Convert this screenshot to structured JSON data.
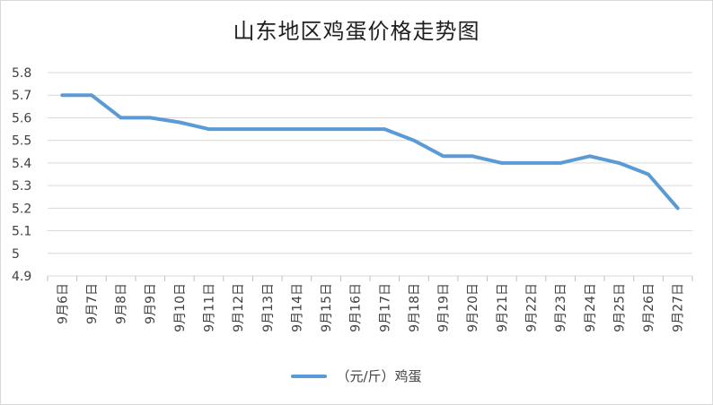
{
  "chart_data": {
    "type": "line",
    "title": "山东地区鸡蛋价格走势图",
    "categories": [
      "9月6日",
      "9月7日",
      "9月8日",
      "9月9日",
      "9月10日",
      "9月11日",
      "9月12日",
      "9月13日",
      "9月14日",
      "9月15日",
      "9月16日",
      "9月17日",
      "9月18日",
      "9月19日",
      "9月20日",
      "9月21日",
      "9月22日",
      "9月23日",
      "9月24日",
      "9月25日",
      "9月26日",
      "9月27日"
    ],
    "series": [
      {
        "name": "（元/斤）鸡蛋",
        "values": [
          5.7,
          5.7,
          5.6,
          5.6,
          5.58,
          5.55,
          5.55,
          5.55,
          5.55,
          5.55,
          5.55,
          5.55,
          5.5,
          5.43,
          5.43,
          5.4,
          5.4,
          5.4,
          5.43,
          5.4,
          5.35,
          5.2
        ],
        "color": "#5b9bd5"
      }
    ],
    "ylim": [
      4.9,
      5.8
    ],
    "yticks": [
      "4.9",
      "5",
      "5.1",
      "5.2",
      "5.3",
      "5.4",
      "5.5",
      "5.6",
      "5.7",
      "5.8"
    ],
    "grid": true,
    "legend_position": "bottom"
  }
}
